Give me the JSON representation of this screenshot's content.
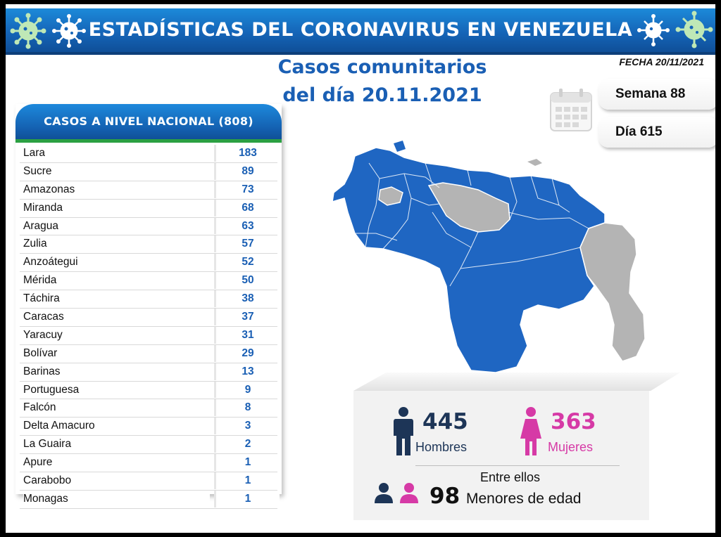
{
  "header": {
    "title": "ESTADÍSTICAS DEL CORONAVIRUS EN VENEZUELA"
  },
  "subtitle": {
    "line1": "Casos comunitarios",
    "line2": "del día 20.11.2021"
  },
  "fecha": "FECHA 20/11/2021",
  "semana": "Semana 88",
  "dia": "Día 615",
  "table": {
    "header": "CASOS A NIVEL NACIONAL  (808)",
    "rows": [
      {
        "name": "Lara",
        "value": "183"
      },
      {
        "name": "Sucre",
        "value": "89"
      },
      {
        "name": "Amazonas",
        "value": "73"
      },
      {
        "name": "Miranda",
        "value": "68"
      },
      {
        "name": "Aragua",
        "value": "63"
      },
      {
        "name": "Zulia",
        "value": "57"
      },
      {
        "name": "Anzoátegui",
        "value": "52"
      },
      {
        "name": "Mérida",
        "value": "50"
      },
      {
        "name": "Táchira",
        "value": "38"
      },
      {
        "name": "Caracas",
        "value": "37"
      },
      {
        "name": "Yaracuy",
        "value": "31"
      },
      {
        "name": "Bolívar",
        "value": "29"
      },
      {
        "name": "Barinas",
        "value": "13"
      },
      {
        "name": "Portuguesa",
        "value": "9"
      },
      {
        "name": "Falcón",
        "value": "8"
      },
      {
        "name": "Delta Amacuro",
        "value": "3"
      },
      {
        "name": "La Guaira",
        "value": "2"
      },
      {
        "name": "Apure",
        "value": "1"
      },
      {
        "name": "Carabobo",
        "value": "1"
      },
      {
        "name": "Monagas",
        "value": "1"
      }
    ]
  },
  "stats": {
    "hombres_value": "445",
    "hombres_label": "Hombres",
    "mujeres_value": "363",
    "mujeres_label": "Mujeres",
    "entre_ellos": "Entre ellos",
    "menores_value": "98",
    "menores_label": "Menores de edad"
  },
  "colors": {
    "brand_blue": "#1a5fb4",
    "header_green": "#2ba043",
    "map_blue": "#1f66c2",
    "map_grey": "#b4b4b4",
    "male": "#1d3557",
    "female": "#d63aa6"
  }
}
